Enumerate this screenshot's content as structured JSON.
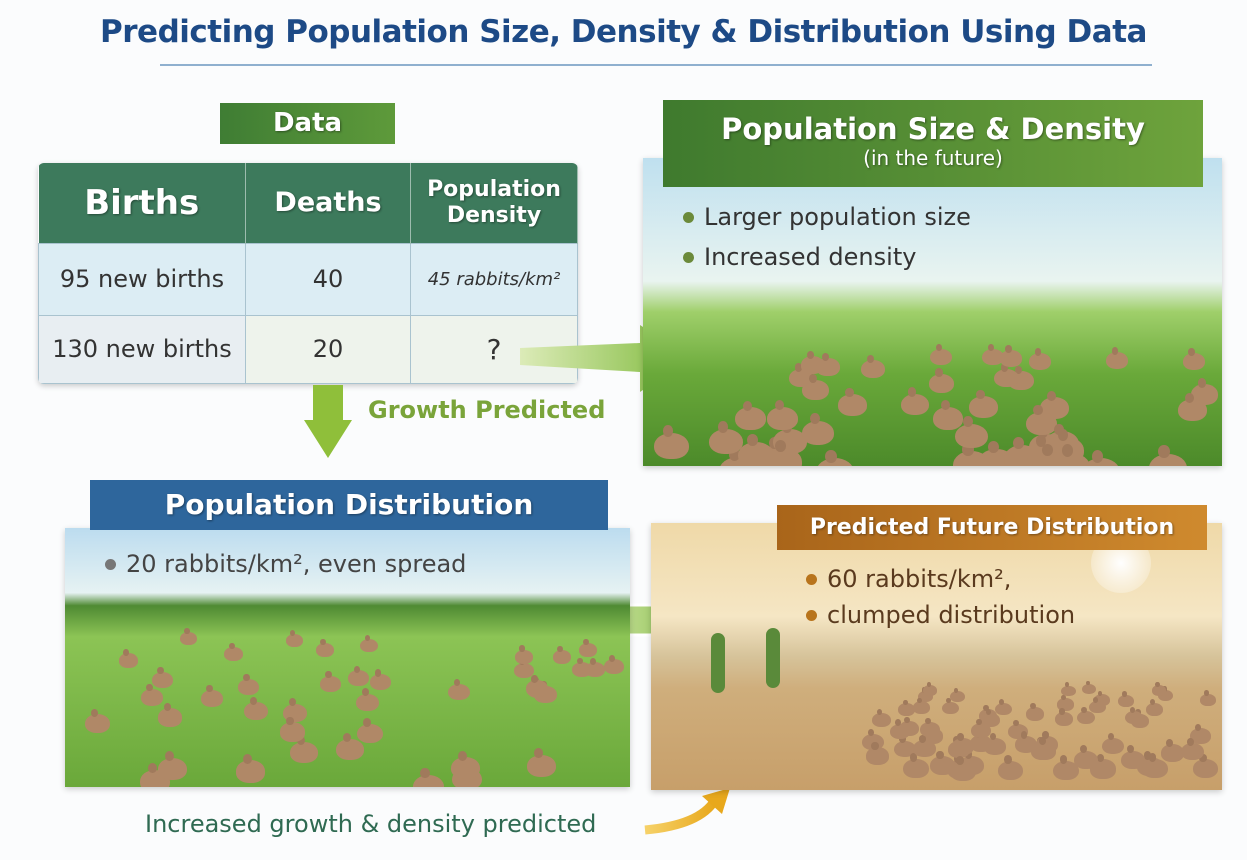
{
  "title": "Predicting Population Size, Density & Distribution Using Data",
  "data_section": {
    "label": "Data",
    "headers": [
      "Births",
      "Deaths",
      "Population Density"
    ],
    "rows": [
      [
        "95 new births",
        "40",
        "45 rabbits/km²"
      ],
      [
        "130 new births",
        "20",
        "?"
      ]
    ]
  },
  "growth_label": "Growth Predicted",
  "future_panel": {
    "title": "Population Size & Density",
    "subtitle": "(in the future)",
    "bullets": [
      "Larger population size",
      "Increased density"
    ]
  },
  "distribution_panel": {
    "title": "Population Distribution",
    "bullets": [
      "20 rabbits/km², even spread"
    ]
  },
  "predicted_panel": {
    "title": "Predicted Future Distribution",
    "bullets": [
      "60 rabbits/km²,",
      "clumped distribution"
    ]
  },
  "footer": "Increased growth & density predicted",
  "colors": {
    "title": "#1d4a86",
    "green": "#5e9a3a",
    "blue": "#2e669c",
    "orange": "#b8741c"
  }
}
